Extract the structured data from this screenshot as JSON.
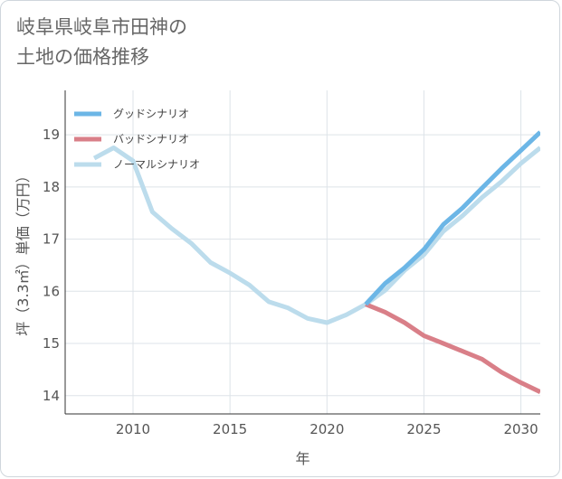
{
  "title": "岐阜県岐阜市田神の\n土地の価格推移",
  "chart_data": {
    "type": "line",
    "xlabel": "年",
    "ylabel": "坪（3.3㎡）単価（万円）",
    "xlim": [
      2006.5,
      2031
    ],
    "ylim": [
      13.65,
      19.85
    ],
    "xticks": [
      2010,
      2015,
      2020,
      2025,
      2030
    ],
    "yticks": [
      14,
      15,
      16,
      17,
      18,
      19
    ],
    "grid": true,
    "legend": "top-left",
    "colors": {
      "good": "#6cb6e6",
      "bad": "#d97f88",
      "normal": "#bcdcec",
      "grid": "#dde3e8",
      "axis": "#333333"
    },
    "series": [
      {
        "key": "normal",
        "name": "ノーマルシナリオ",
        "x": [
          2008,
          2009,
          2010,
          2011,
          2012,
          2013,
          2014,
          2015,
          2016,
          2017,
          2018,
          2019,
          2020,
          2021,
          2022,
          2023,
          2024,
          2025,
          2026,
          2027,
          2028,
          2029,
          2030,
          2031
        ],
        "values": [
          18.55,
          18.75,
          18.5,
          17.52,
          17.2,
          16.92,
          16.55,
          16.35,
          16.12,
          15.8,
          15.68,
          15.48,
          15.4,
          15.55,
          15.75,
          16.02,
          16.4,
          16.7,
          17.15,
          17.45,
          17.8,
          18.1,
          18.45,
          18.75
        ]
      },
      {
        "key": "bad",
        "name": "バッドシナリオ",
        "x": [
          2022,
          2023,
          2024,
          2025,
          2026,
          2027,
          2028,
          2029,
          2030,
          2031
        ],
        "values": [
          15.75,
          15.6,
          15.4,
          15.15,
          15.0,
          14.85,
          14.7,
          14.45,
          14.25,
          14.07
        ]
      },
      {
        "key": "good",
        "name": "グッドシナリオ",
        "x": [
          2022,
          2023,
          2024,
          2025,
          2026,
          2027,
          2028,
          2029,
          2030,
          2031
        ],
        "values": [
          15.75,
          16.15,
          16.45,
          16.8,
          17.28,
          17.6,
          17.98,
          18.35,
          18.7,
          19.05
        ]
      }
    ],
    "legend_order": [
      "good",
      "bad",
      "normal"
    ]
  }
}
